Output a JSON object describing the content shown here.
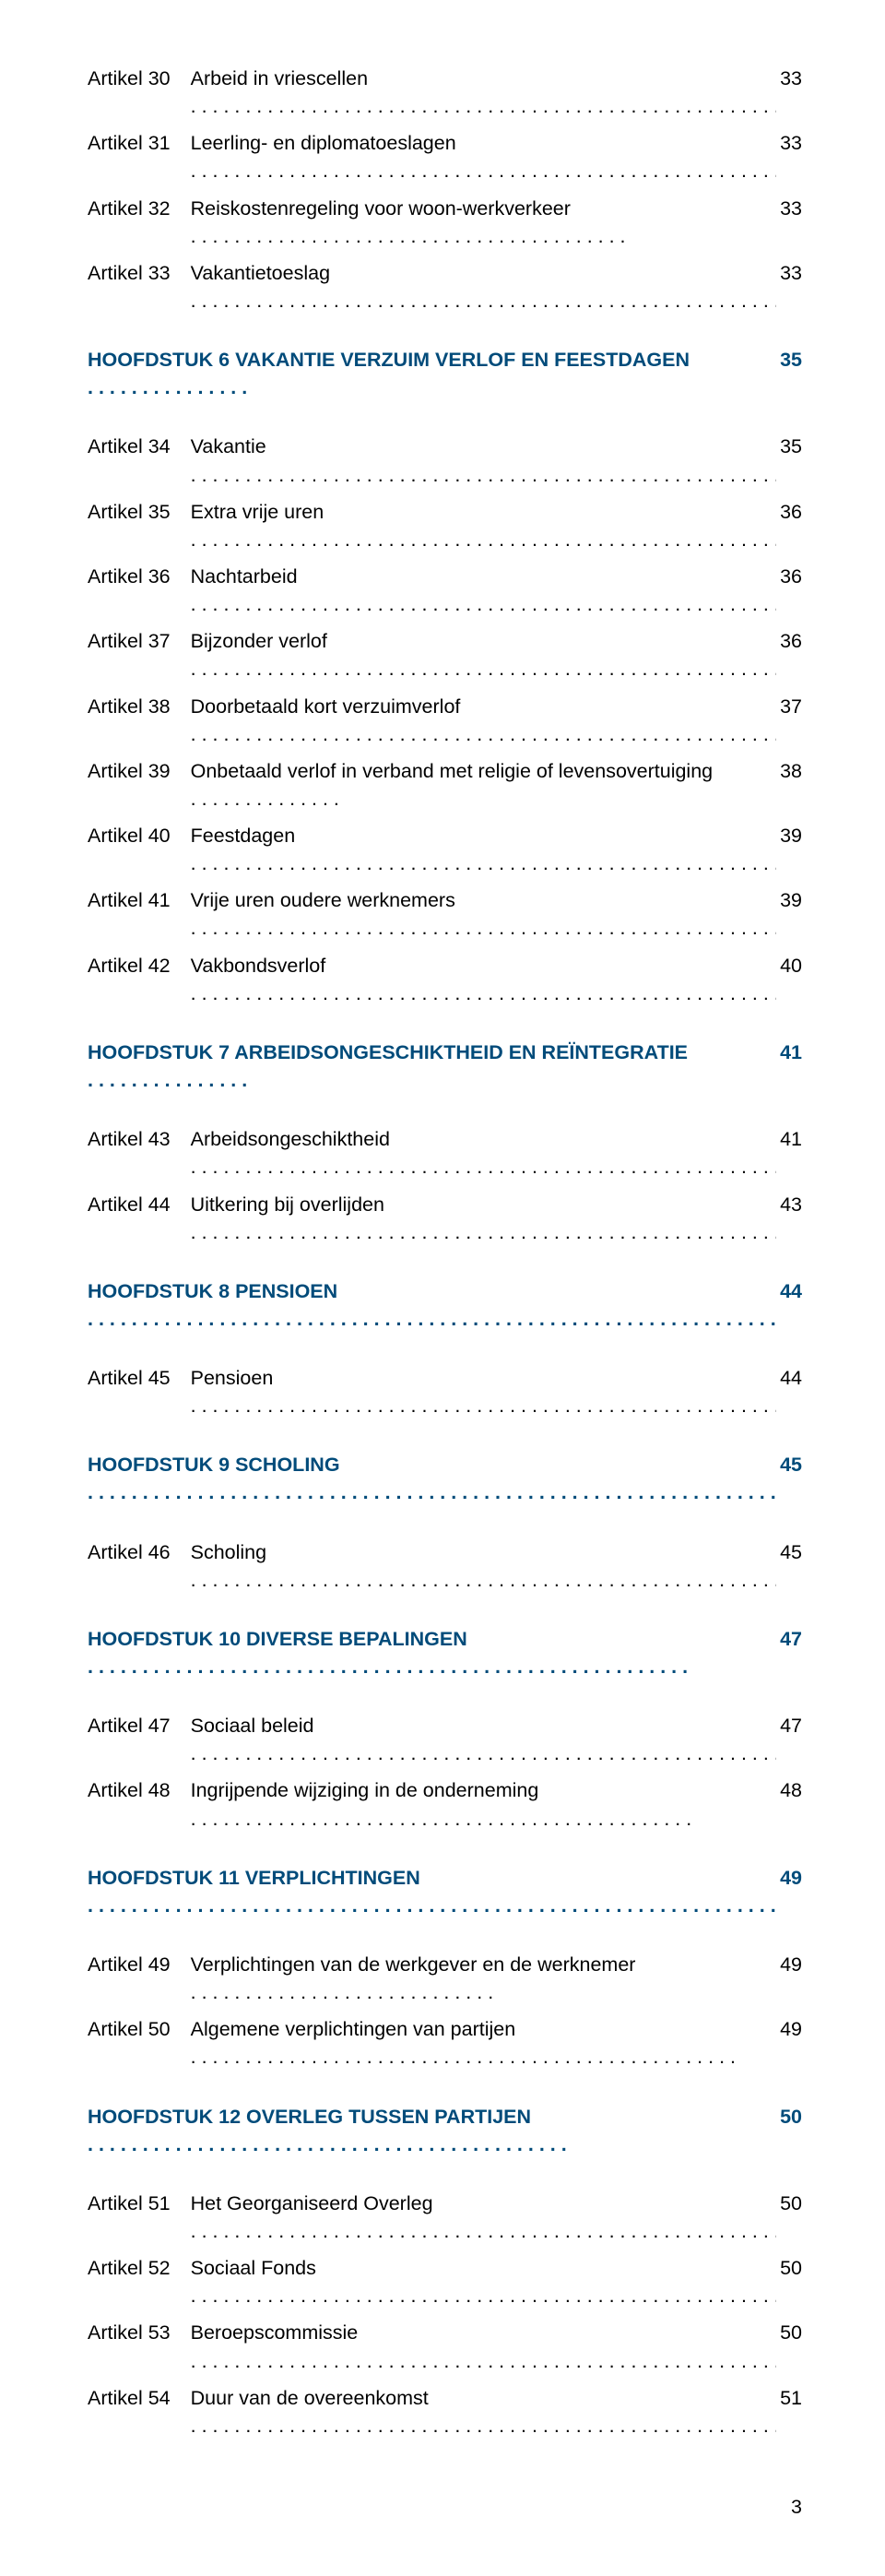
{
  "document": {
    "page_number": "3",
    "text_color": "#000000",
    "chapter_color": "#004b7a",
    "background": "#ffffff"
  },
  "toc": [
    {
      "type": "article",
      "label": "Artikel 30",
      "title": "Arbeid in vriescellen",
      "page": "33"
    },
    {
      "type": "article",
      "label": "Artikel 31",
      "title": "Leerling- en diplomatoeslagen",
      "page": "33"
    },
    {
      "type": "article",
      "label": "Artikel 32",
      "title": "Reiskostenregeling voor woon-werkverkeer",
      "page": "33"
    },
    {
      "type": "article",
      "label": "Artikel 33",
      "title": "Vakantietoeslag",
      "page": "33"
    },
    {
      "type": "chapter",
      "label": "HOOFDSTUK 6 VAKANTIE VERZUIM VERLOF EN FEESTDAGEN",
      "page": "35"
    },
    {
      "type": "article",
      "label": "Artikel 34",
      "title": "Vakantie",
      "page": "35"
    },
    {
      "type": "article",
      "label": "Artikel 35",
      "title": "Extra vrije uren",
      "page": "36"
    },
    {
      "type": "article",
      "label": "Artikel 36",
      "title": "Nachtarbeid",
      "page": "36"
    },
    {
      "type": "article",
      "label": "Artikel 37",
      "title": "Bijzonder verlof",
      "page": "36"
    },
    {
      "type": "article",
      "label": "Artikel 38",
      "title": "Doorbetaald kort verzuimverlof",
      "page": "37"
    },
    {
      "type": "article",
      "label": "Artikel 39",
      "title": "Onbetaald verlof in verband met religie of levensovertuiging",
      "page": "38"
    },
    {
      "type": "article",
      "label": "Artikel 40",
      "title": "Feestdagen",
      "page": "39"
    },
    {
      "type": "article",
      "label": "Artikel 41",
      "title": "Vrije uren oudere werknemers",
      "page": "39"
    },
    {
      "type": "article",
      "label": "Artikel 42",
      "title": "Vakbondsverlof",
      "page": "40"
    },
    {
      "type": "chapter",
      "label": "HOOFDSTUK 7 ARBEIDSONGESCHIKTHEID EN REÏNTEGRATIE",
      "page": "41"
    },
    {
      "type": "article",
      "label": "Artikel 43",
      "title": "Arbeidsongeschiktheid",
      "page": "41"
    },
    {
      "type": "article",
      "label": "Artikel 44",
      "title": "Uitkering bij overlijden",
      "page": "43"
    },
    {
      "type": "chapter",
      "label": "HOOFDSTUK 8 PENSIOEN",
      "page": "44"
    },
    {
      "type": "article",
      "label": "Artikel 45",
      "title": "Pensioen",
      "page": "44"
    },
    {
      "type": "chapter",
      "label": "HOOFDSTUK 9 SCHOLING",
      "page": "45"
    },
    {
      "type": "article",
      "label": "Artikel 46",
      "title": "Scholing",
      "page": "45"
    },
    {
      "type": "chapter",
      "label": "HOOFDSTUK 10 DIVERSE BEPALINGEN",
      "page": "47"
    },
    {
      "type": "article",
      "label": "Artikel 47",
      "title": "Sociaal beleid",
      "page": "47"
    },
    {
      "type": "article",
      "label": "Artikel 48",
      "title": "Ingrijpende wijziging in de onderneming",
      "page": "48"
    },
    {
      "type": "chapter",
      "label": "HOOFDSTUK 11 VERPLICHTINGEN",
      "page": "49"
    },
    {
      "type": "article",
      "label": "Artikel 49",
      "title": "Verplichtingen van de werkgever en de werknemer",
      "page": "49"
    },
    {
      "type": "article",
      "label": "Artikel 50",
      "title": "Algemene verplichtingen van partijen",
      "page": "49"
    },
    {
      "type": "chapter",
      "label": "HOOFDSTUK 12 OVERLEG TUSSEN PARTIJEN",
      "page": "50"
    },
    {
      "type": "article",
      "label": "Artikel 51",
      "title": "Het Georganiseerd Overleg",
      "page": "50"
    },
    {
      "type": "article",
      "label": "Artikel 52",
      "title": "Sociaal Fonds",
      "page": "50"
    },
    {
      "type": "article",
      "label": "Artikel 53",
      "title": "Beroepscommissie",
      "page": "50"
    },
    {
      "type": "article",
      "label": "Artikel 54",
      "title": "Duur van de overeenkomst",
      "page": "51"
    }
  ]
}
